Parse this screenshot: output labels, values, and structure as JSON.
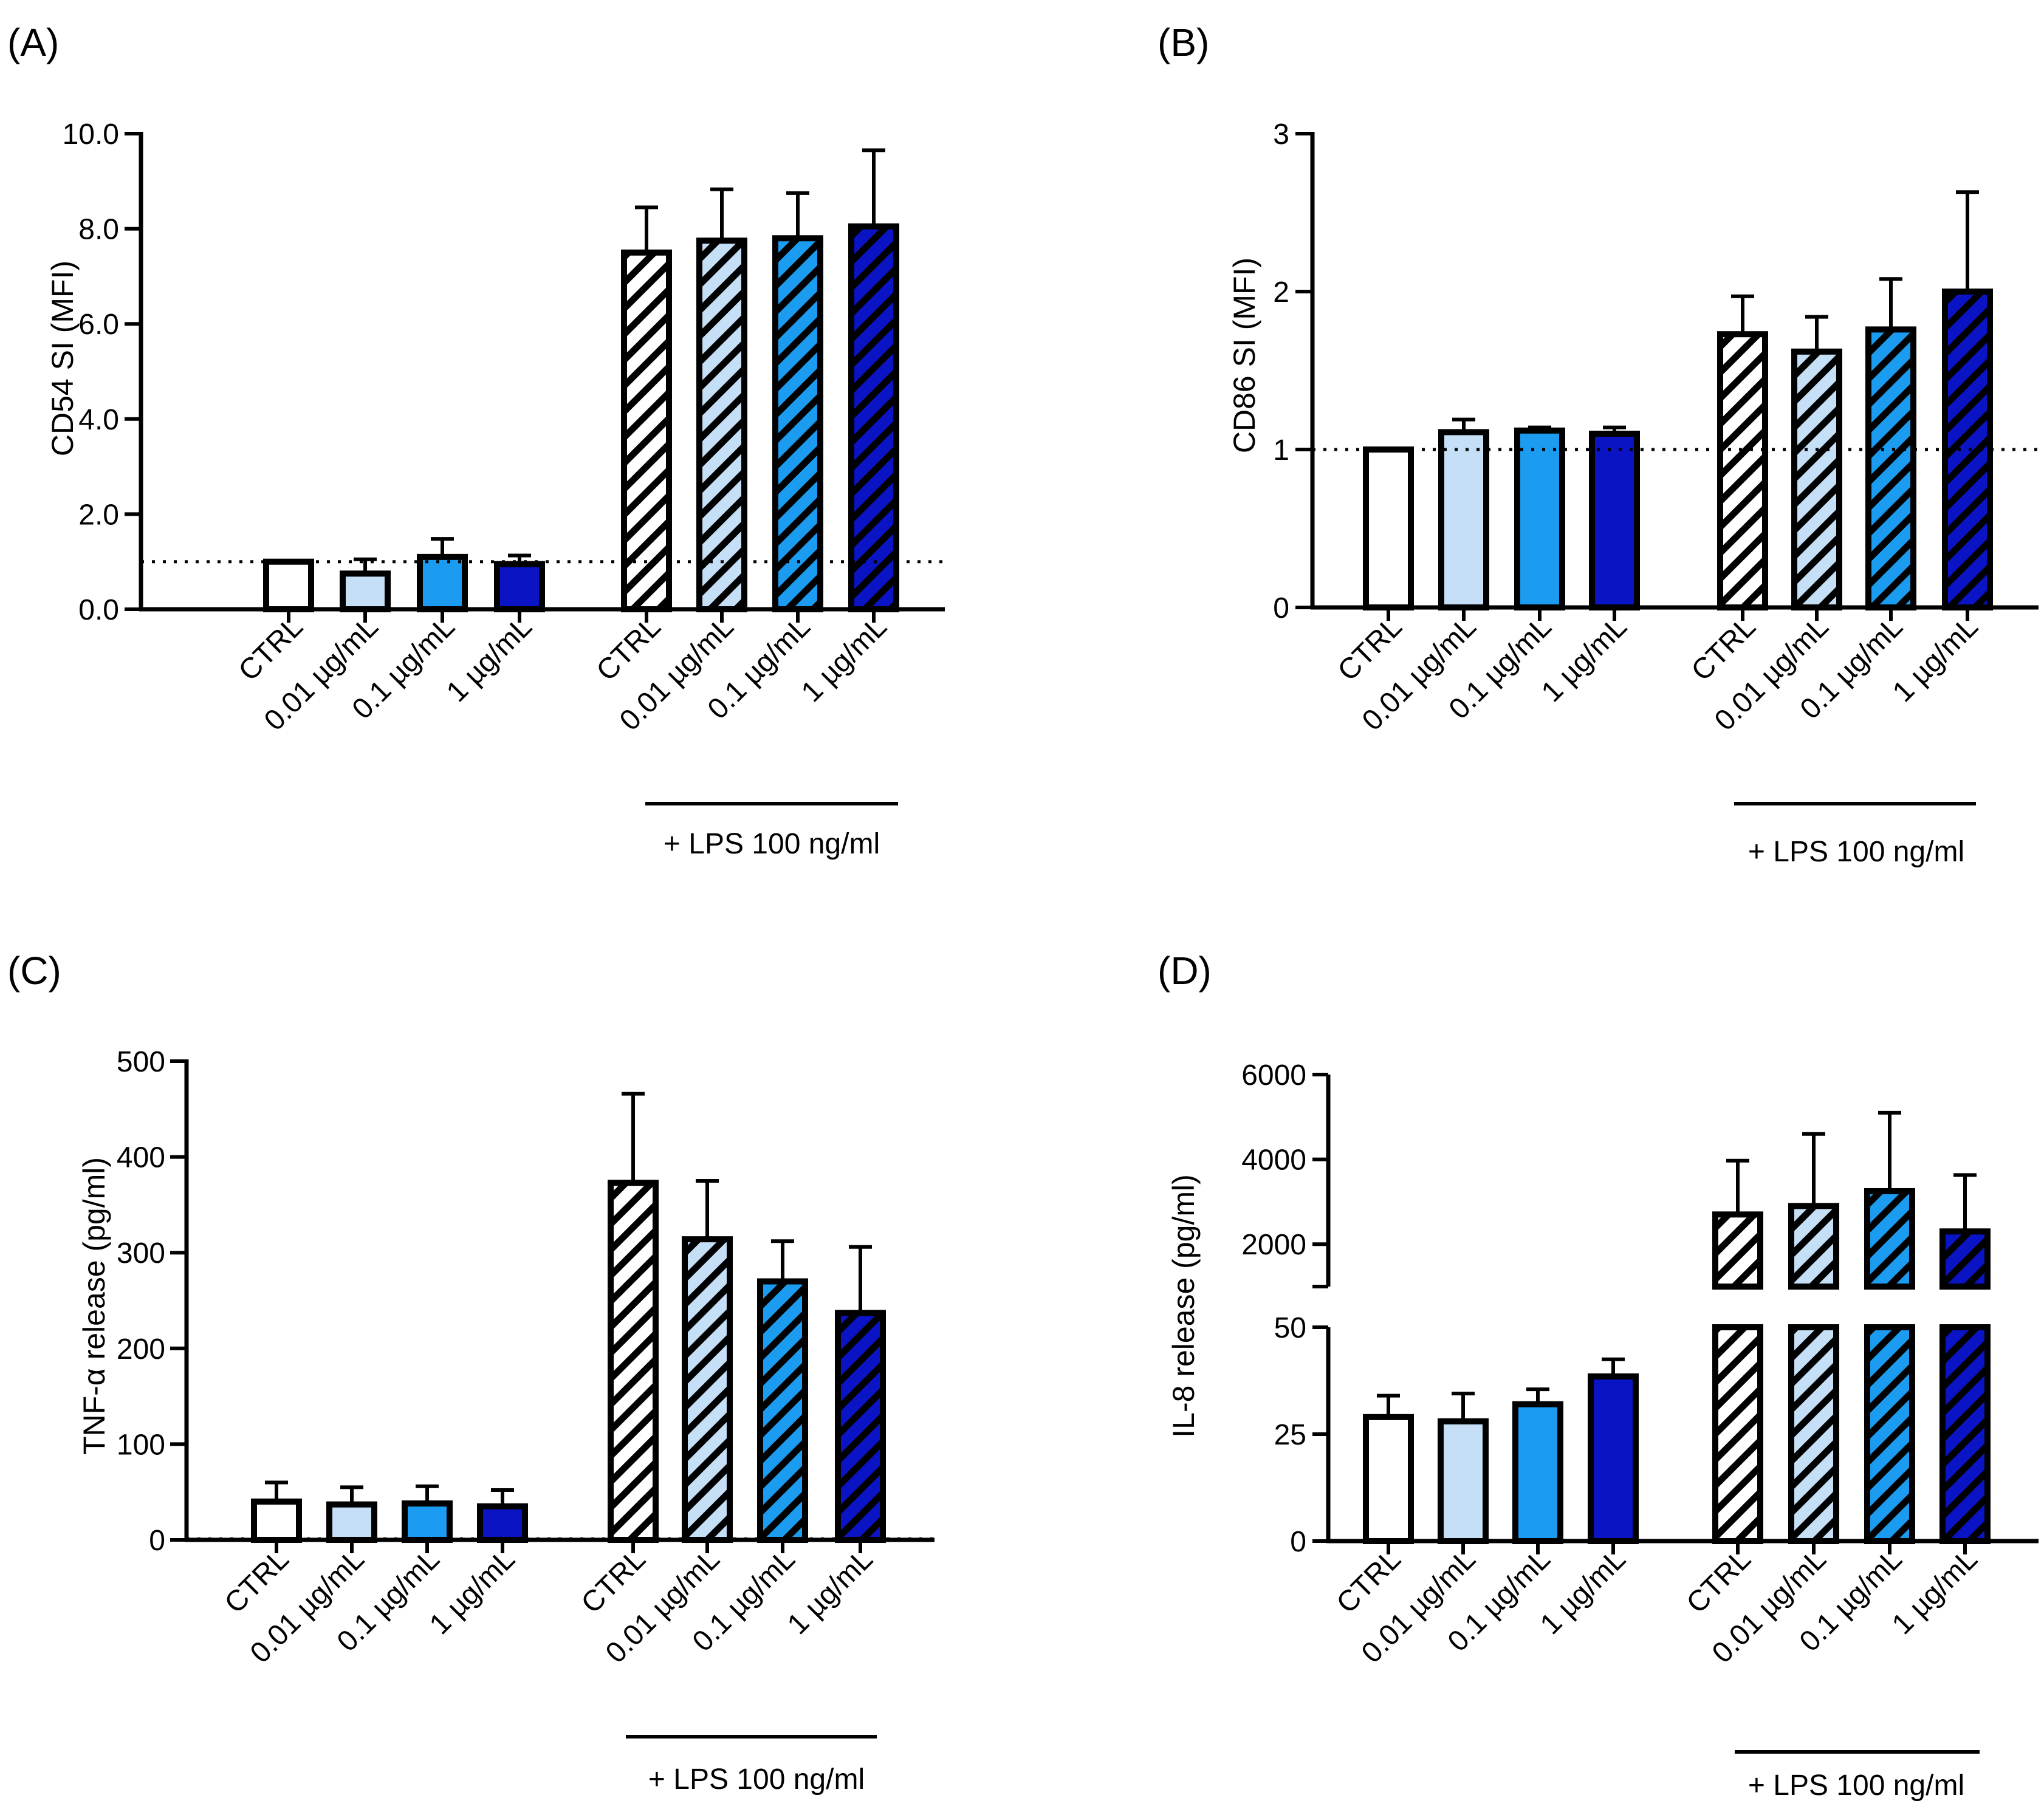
{
  "figure": {
    "categories": [
      "CTRL",
      "0.01 µg/mL",
      "0.1 µg/mL",
      "1 µg/mL",
      "CTRL",
      "0.01 µg/mL",
      "0.1 µg/mL",
      "1 µg/mL"
    ],
    "group_label": "+ LPS 100 ng/ml",
    "colors": {
      "ctrl": "#ffffff",
      "low": "#c5dff7",
      "mid": "#1b9cf0",
      "high": "#0a14c4",
      "outline": "#000000"
    }
  },
  "chart_data": [
    {
      "panel": "(A)",
      "type": "bar",
      "ylabel": "CD54 SI (MFI)",
      "categories": [
        "CTRL",
        "0.01 µg/mL",
        "0.1 µg/mL",
        "1 µg/mL",
        "CTRL",
        "0.01 µg/mL",
        "0.1 µg/mL",
        "1 µg/mL"
      ],
      "values": [
        1.0,
        0.75,
        1.1,
        0.95,
        7.5,
        7.75,
        7.8,
        8.05
      ],
      "errors": [
        0.0,
        0.3,
        0.38,
        0.18,
        0.95,
        1.08,
        0.95,
        1.6
      ],
      "hatched": [
        false,
        false,
        false,
        false,
        true,
        true,
        true,
        true
      ],
      "ylim": [
        0,
        10
      ],
      "yticks": [
        0,
        2,
        4,
        6,
        8,
        10
      ],
      "ytick_labels": [
        "0.0",
        "2.0",
        "4.0",
        "6.0",
        "8.0",
        "10.0"
      ],
      "reference_line": 1.0,
      "group_label": "+ LPS 100 ng/ml"
    },
    {
      "panel": "(B)",
      "type": "bar",
      "ylabel": "CD86 SI (MFI)",
      "categories": [
        "CTRL",
        "0.01 µg/mL",
        "0.1 µg/mL",
        "1 µg/mL",
        "CTRL",
        "0.01 µg/mL",
        "0.1 µg/mL",
        "1 µg/mL"
      ],
      "values": [
        1.0,
        1.11,
        1.12,
        1.1,
        1.73,
        1.62,
        1.76,
        2.0
      ],
      "errors": [
        0.0,
        0.08,
        0.02,
        0.04,
        0.24,
        0.22,
        0.32,
        0.63
      ],
      "hatched": [
        false,
        false,
        false,
        false,
        true,
        true,
        true,
        true
      ],
      "ylim": [
        0,
        3
      ],
      "yticks": [
        0,
        1,
        2,
        3
      ],
      "ytick_labels": [
        "0",
        "1",
        "2",
        "3"
      ],
      "reference_line": 1.0,
      "group_label": "+ LPS 100 ng/ml"
    },
    {
      "panel": "(C)",
      "type": "bar",
      "ylabel": "TNF-α release (pg/ml)",
      "categories": [
        "CTRL",
        "0.01 µg/mL",
        "0.1 µg/mL",
        "1 µg/mL",
        "CTRL",
        "0.01 µg/mL",
        "0.1 µg/mL",
        "1 µg/mL"
      ],
      "values": [
        40,
        37,
        38,
        35,
        373,
        314,
        270,
        237
      ],
      "errors": [
        20,
        18,
        18,
        17,
        93,
        61,
        42,
        69
      ],
      "hatched": [
        false,
        false,
        false,
        false,
        true,
        true,
        true,
        true
      ],
      "ylim": [
        0,
        500
      ],
      "yticks": [
        0,
        100,
        200,
        300,
        400,
        500
      ],
      "ytick_labels": [
        "0",
        "100",
        "200",
        "300",
        "400",
        "500"
      ],
      "reference_line": 1,
      "group_label": "+ LPS 100 ng/ml"
    },
    {
      "panel": "(D)",
      "type": "bar",
      "ylabel": "IL-8 release (pg/ml)",
      "broken_axis": true,
      "lower_ylim": [
        0,
        50
      ],
      "lower_yticks": [
        0,
        25,
        50
      ],
      "upper_ylim": [
        1000,
        6000
      ],
      "upper_yticks": [
        2000,
        4000,
        6000
      ],
      "categories": [
        "CTRL",
        "0.01 µg/mL",
        "0.1 µg/mL",
        "1 µg/mL",
        "CTRL",
        "0.01 µg/mL",
        "0.1 µg/mL",
        "1 µg/mL"
      ],
      "values": [
        29,
        28,
        32,
        38.5,
        2700,
        2900,
        3250,
        2300
      ],
      "errors": [
        5,
        6.5,
        3.5,
        4,
        1270,
        1700,
        1850,
        1330
      ],
      "hatched": [
        false,
        false,
        false,
        false,
        true,
        true,
        true,
        true
      ],
      "group_label": "+ LPS 100 ng/ml"
    }
  ]
}
